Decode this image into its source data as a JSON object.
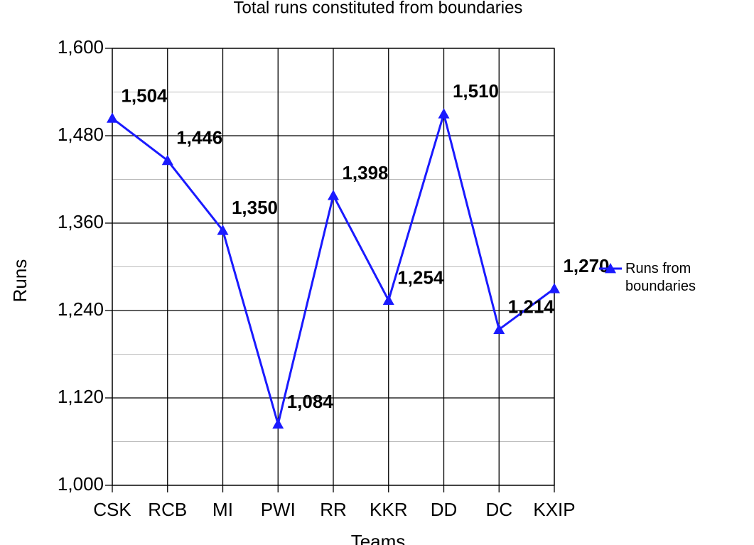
{
  "chart_data": {
    "type": "line",
    "title": "Total runs constituted from boundaries",
    "x_label": "Teams",
    "y_label": "Runs",
    "categories": [
      "CSK",
      "RCB",
      "MI",
      "PWI",
      "RR",
      "KKR",
      "DD",
      "DC",
      "KXIP"
    ],
    "series": [
      {
        "name": "Runs from boundaries",
        "color": "#1a1aff",
        "values": [
          1504,
          1446,
          1350,
          1084,
          1398,
          1254,
          1510,
          1214,
          1270
        ],
        "value_labels": [
          "1,504",
          "1,446",
          "1,350",
          "1,084",
          "1,398",
          "1,254",
          "1,510",
          "1,214",
          "1,270"
        ]
      }
    ],
    "ylim": [
      1000,
      1600
    ],
    "yticks": [
      {
        "value": 1000,
        "label": "1,000"
      },
      {
        "value": 1120,
        "label": "1,120"
      },
      {
        "value": 1240,
        "label": "1,240"
      },
      {
        "value": 1360,
        "label": "1,360"
      },
      {
        "value": 1480,
        "label": "1,480"
      },
      {
        "value": 1600,
        "label": "1,600"
      }
    ],
    "grid": true,
    "minor_grid": true,
    "legend": "right"
  }
}
